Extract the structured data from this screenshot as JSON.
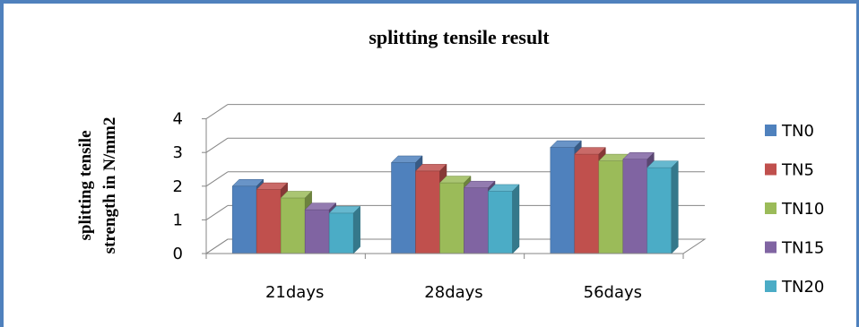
{
  "chart_data": {
    "type": "bar",
    "title": "splitting tensile result",
    "ylabel_lines": [
      "splitting tensile",
      "strength in N/mm2"
    ],
    "xlabel": "",
    "categories": [
      "21days",
      "28days",
      "56days"
    ],
    "ylim": [
      0,
      4
    ],
    "yticks": [
      "0",
      "1",
      "2",
      "3",
      "4"
    ],
    "grid": true,
    "legend_position": "right",
    "series": [
      {
        "name": "TN0",
        "color": "#4f81bd",
        "values": [
          2.0,
          2.7,
          3.15
        ]
      },
      {
        "name": "TN5",
        "color": "#c0504d",
        "values": [
          1.9,
          2.45,
          2.95
        ]
      },
      {
        "name": "TN10",
        "color": "#9bbb59",
        "values": [
          1.65,
          2.1,
          2.75
        ]
      },
      {
        "name": "TN15",
        "color": "#8064a2",
        "values": [
          1.3,
          1.95,
          2.8
        ]
      },
      {
        "name": "TN20",
        "color": "#4bacc6",
        "values": [
          1.2,
          1.85,
          2.55
        ]
      }
    ]
  }
}
